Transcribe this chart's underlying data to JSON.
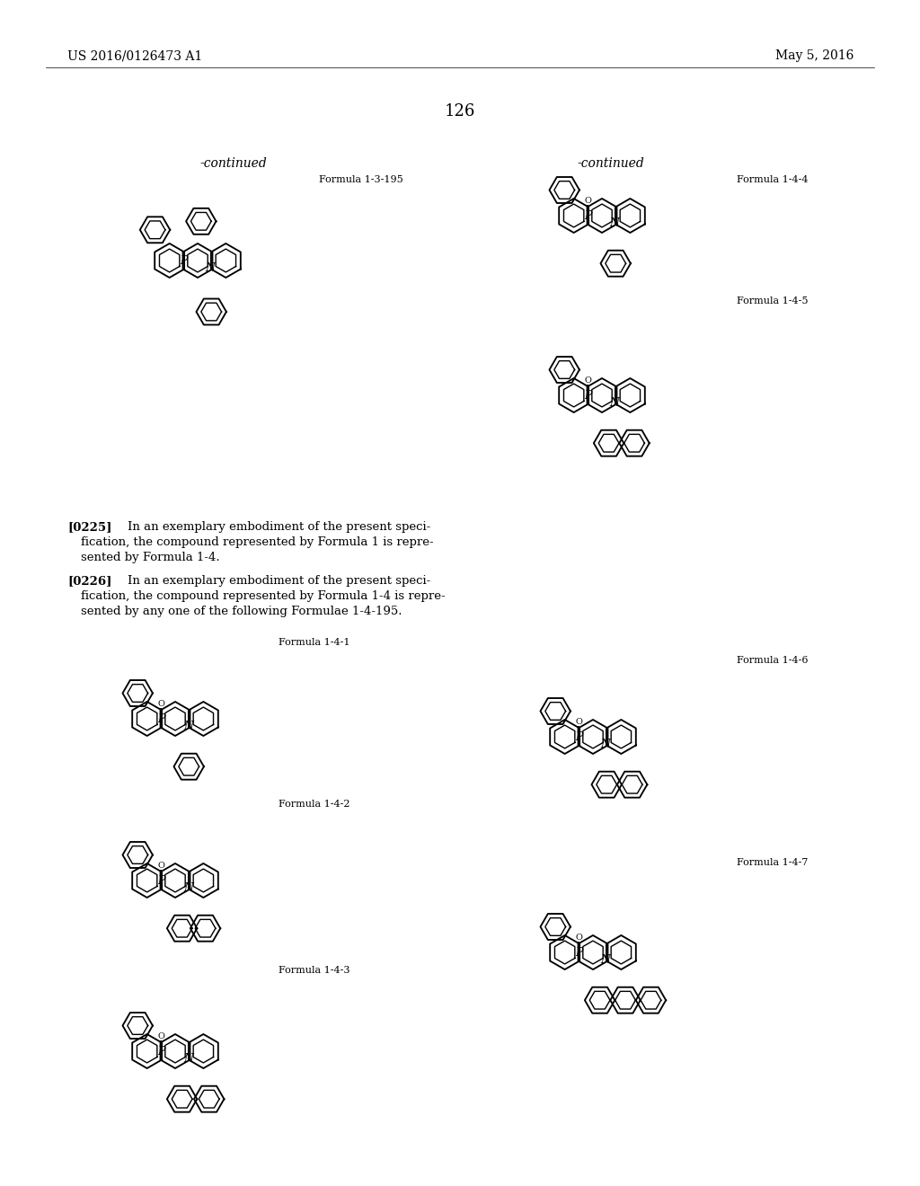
{
  "page_number": "126",
  "header_left": "US 2016/0126473 A1",
  "header_right": "May 5, 2016",
  "background_color": "#ffffff",
  "text_color": "#000000",
  "continued_left": "-continued",
  "continued_right": "-continued",
  "formula_label_top_left": "Formula 1-3-195",
  "formula_label_top_right": "Formula 1-4-4",
  "formula_label_right2": "Formula 1-4-5",
  "para_0225_label": "[0225]",
  "para_0225_text": "In an exemplary embodiment of the present specification, the compound represented by Formula 1 is represented by Formula 1-4.",
  "para_0226_label": "[0226]",
  "para_0226_text": "In an exemplary embodiment of the present specification, the compound represented by Formula 1-4 is represented by any one of the following Formulae 1-4-195.",
  "formula_label_1_4_1": "Formula 1-4-1",
  "formula_label_1_4_2": "Formula 1-4-2",
  "formula_label_1_4_3": "Formula 1-4-3",
  "formula_label_1_4_6": "Formula 1-4-6",
  "formula_label_1_4_7": "Formula 1-4-7"
}
